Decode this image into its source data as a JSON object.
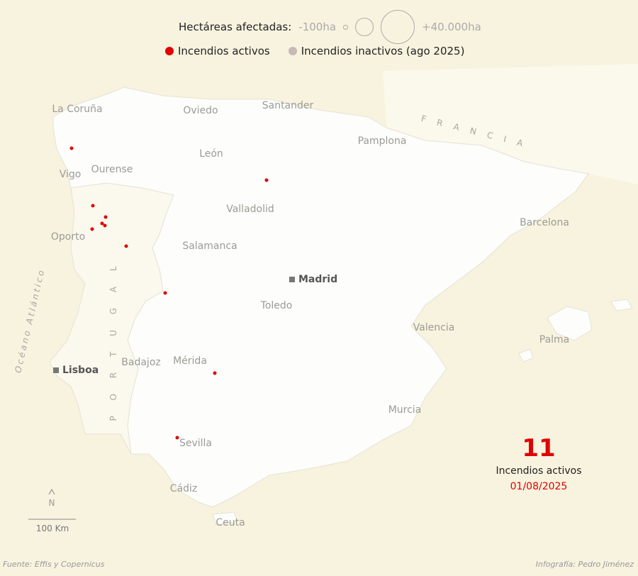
{
  "legend": {
    "size_title": "Hectáreas afectadas:",
    "size_min": "-100ha",
    "size_max": "+40.000ha",
    "active_label": "Incendios activos",
    "inactive_label": "Incendios inactivos (ago 2025)",
    "active_color": "#e00000",
    "inactive_color": "#c9b8b6"
  },
  "map": {
    "cities": [
      "La Coruña",
      "Oviedo",
      "Santander",
      "Pamplona",
      "León",
      "Vigo",
      "Ourense",
      "Valladolid",
      "Oporto",
      "Salamanca",
      "Barcelona",
      "Toledo",
      "Valencia",
      "Palma",
      "Badajoz",
      "Mérida",
      "Murcia",
      "Sevilla",
      "Cádiz",
      "Ceuta"
    ],
    "capitals": [
      "Madrid",
      "Lisboa"
    ],
    "regions": {
      "francia": "F R A N C I A",
      "portugal": "P O R T U G A L",
      "ocean": "Océano Atlántico"
    },
    "north": "N",
    "scale": "100 Km"
  },
  "stats": {
    "count": "11",
    "label": "Incendios activos",
    "date": "01/08/2025"
  },
  "footer": {
    "source": "Fuente: Effis y Copernicus",
    "credit": "Infografía: Pedro Jiménez"
  }
}
